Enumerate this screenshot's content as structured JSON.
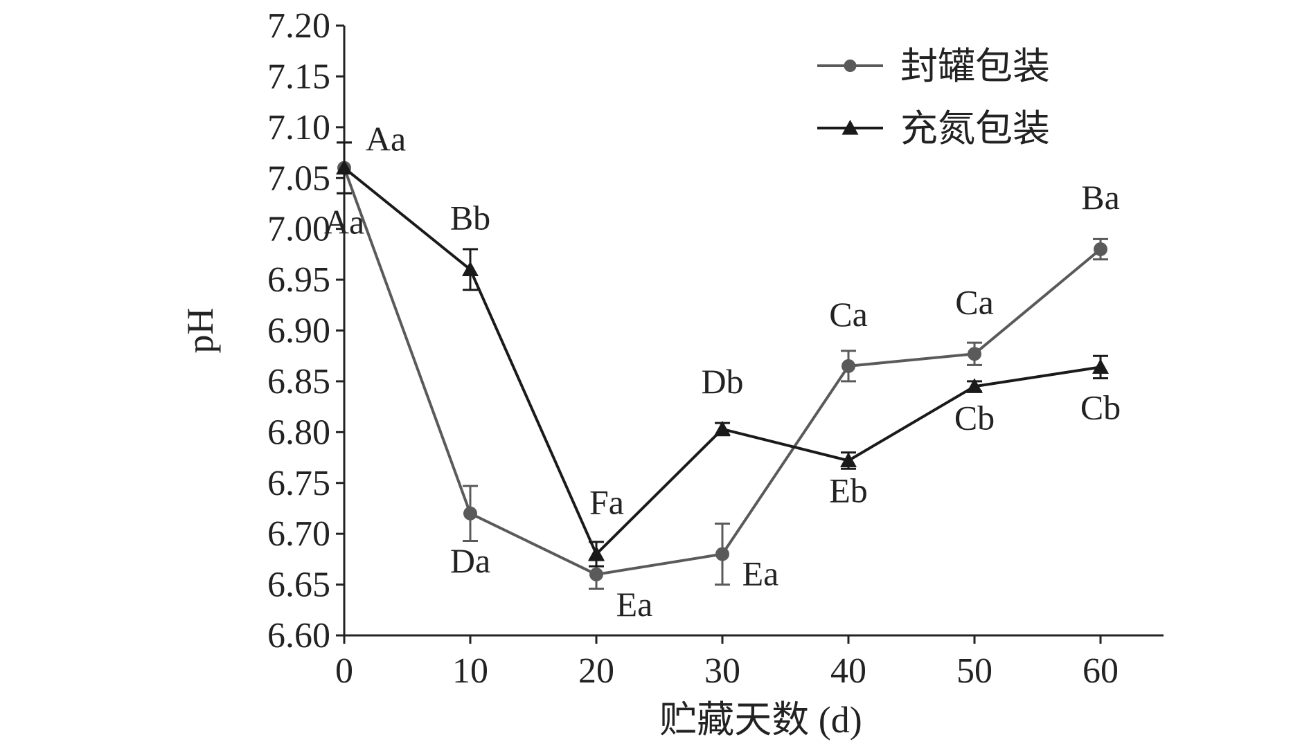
{
  "chart_data": {
    "type": "line",
    "xlabel": "贮藏天数 (d)",
    "ylabel": "pH",
    "x": [
      0,
      10,
      20,
      30,
      40,
      50,
      60
    ],
    "xlim": [
      0,
      65
    ],
    "ylim": [
      6.6,
      7.2
    ],
    "x_ticks": [
      "0",
      "10",
      "20",
      "30",
      "40",
      "50",
      "60"
    ],
    "y_ticks": [
      "6.60",
      "6.65",
      "6.70",
      "6.75",
      "6.80",
      "6.85",
      "6.90",
      "6.95",
      "7.00",
      "7.05",
      "7.10",
      "7.15",
      "7.20"
    ],
    "grid": false,
    "legend_position": "top-right",
    "series": [
      {
        "name": "封罐包装",
        "marker": "circle",
        "color": "#5a5a5a",
        "values": [
          7.06,
          6.72,
          6.66,
          6.68,
          6.865,
          6.877,
          6.98
        ],
        "errors": [
          0.025,
          0.027,
          0.014,
          0.03,
          0.015,
          0.011,
          0.01
        ],
        "labels": [
          "Aa",
          "Da",
          "Ea",
          "Ea",
          "Ca",
          "Ca",
          "Ba"
        ]
      },
      {
        "name": "充氮包装",
        "marker": "triangle",
        "color": "#1a1a1a",
        "values": [
          7.06,
          6.96,
          6.68,
          6.803,
          6.772,
          6.845,
          6.864
        ],
        "errors": [
          0.025,
          0.02,
          0.012,
          0.006,
          0.008,
          0.005,
          0.011
        ],
        "labels": [
          "Aa",
          "Bb",
          "Fa",
          "Db",
          "Eb",
          "Cb",
          "Cb"
        ]
      }
    ]
  }
}
